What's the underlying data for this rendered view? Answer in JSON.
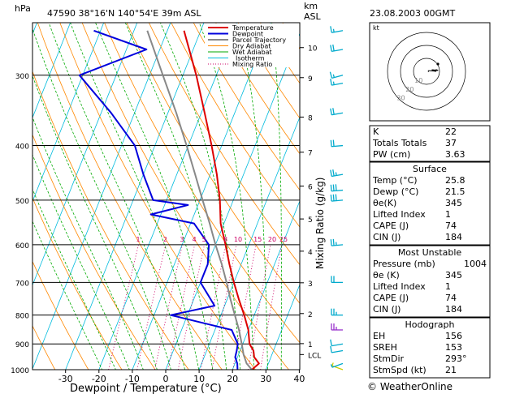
{
  "header": {
    "hpa_label": "hPa",
    "station_info": "47590  38°16'N  140°54'E   39m  ASL",
    "km_label": "km",
    "asl_label": "ASL",
    "datetime": "23.08.2003  00GMT"
  },
  "footer": {
    "credit": "© WeatherOnline"
  },
  "colors": {
    "temperature": "#dd0000",
    "dewpoint": "#0000dd",
    "parcel": "#888888",
    "dry_adiabat": "#ff8800",
    "wet_adiabat": "#00aa00",
    "isotherm": "#00bbdd",
    "mixing_ratio": "#cc0066",
    "wind_barb": "#00aacc",
    "hodograph": "#000000"
  },
  "chart_data": {
    "type": "line",
    "xlabel": "Dewpoint / Temperature (°C)",
    "ylabel_right": "Mixing Ratio (g/kg)",
    "xlim": [
      -40,
      40
    ],
    "ylim": [
      1000,
      250
    ],
    "y_scale": "log",
    "x_ticks": [
      -30,
      -20,
      -10,
      0,
      10,
      20,
      30,
      40
    ],
    "pressure_ticks": [
      300,
      400,
      500,
      600,
      700,
      800,
      900,
      1000
    ],
    "height_ticks": [
      {
        "km": "10",
        "p": 268
      },
      {
        "km": "9",
        "p": 303
      },
      {
        "km": "8",
        "p": 356
      },
      {
        "km": "7",
        "p": 411
      },
      {
        "km": "6",
        "p": 472
      },
      {
        "km": "5",
        "p": 540
      },
      {
        "km": "4",
        "p": 616
      },
      {
        "km": "3",
        "p": 701
      },
      {
        "km": "2",
        "p": 795
      },
      {
        "km": "1",
        "p": 899
      },
      {
        "km": "LCL",
        "p": 940
      }
    ],
    "mixing_ratio_labels": [
      "1",
      "2",
      "3",
      "4",
      "5",
      "8",
      "10",
      "15",
      "20",
      "25"
    ],
    "legend": [
      "Temperature",
      "Dewpoint",
      "Parcel Trajectory",
      "Dry Adiabat",
      "Wet Adiabat",
      "Isotherm",
      "Mixing Ratio"
    ],
    "legend_position": "top-right",
    "grid": true,
    "skew": true,
    "series": [
      {
        "name": "Temperature",
        "points": [
          [
            1000,
            25.8
          ],
          [
            975,
            27.2
          ],
          [
            950,
            25
          ],
          [
            925,
            24
          ],
          [
            900,
            22
          ],
          [
            850,
            20
          ],
          [
            800,
            17
          ],
          [
            750,
            13.5
          ],
          [
            700,
            10
          ],
          [
            650,
            6.5
          ],
          [
            600,
            3
          ],
          [
            550,
            -1
          ],
          [
            500,
            -4
          ],
          [
            450,
            -8
          ],
          [
            400,
            -13
          ],
          [
            350,
            -19
          ],
          [
            300,
            -26
          ],
          [
            250,
            -35
          ]
        ]
      },
      {
        "name": "Dewpoint",
        "points": [
          [
            1000,
            21.5
          ],
          [
            975,
            20.7
          ],
          [
            950,
            19.3
          ],
          [
            925,
            19
          ],
          [
            900,
            18.5
          ],
          [
            850,
            15
          ],
          [
            800,
            -5
          ],
          [
            770,
            7
          ],
          [
            700,
            0
          ],
          [
            650,
            0
          ],
          [
            600,
            -2
          ],
          [
            550,
            -9
          ],
          [
            530,
            -23
          ],
          [
            510,
            -13
          ],
          [
            500,
            -24
          ],
          [
            450,
            -30
          ],
          [
            400,
            -36
          ],
          [
            350,
            -47
          ],
          [
            300,
            -61
          ],
          [
            270,
            -44
          ],
          [
            250,
            -62
          ]
        ]
      },
      {
        "name": "Parcel Trajectory",
        "points": [
          [
            1000,
            25.8
          ],
          [
            975,
            23.5
          ],
          [
            940,
            21.5
          ],
          [
            900,
            19.7
          ],
          [
            850,
            17.2
          ],
          [
            800,
            14.2
          ],
          [
            750,
            11
          ],
          [
            700,
            7.8
          ],
          [
            650,
            4.2
          ],
          [
            600,
            0
          ],
          [
            550,
            -4.3
          ],
          [
            500,
            -9.2
          ],
          [
            450,
            -14.5
          ],
          [
            400,
            -20.5
          ],
          [
            350,
            -27.5
          ],
          [
            300,
            -36
          ],
          [
            250,
            -46
          ]
        ]
      }
    ],
    "wind_profile": [
      {
        "p": 1000,
        "dir": 290,
        "kt": 5
      },
      {
        "p": 975,
        "dir": 250,
        "kt": 5
      },
      {
        "p": 925,
        "dir": 260,
        "kt": 10
      },
      {
        "p": 900,
        "dir": 260,
        "kt": 10
      },
      {
        "p": 850,
        "dir": 270,
        "kt": 25
      },
      {
        "p": 800,
        "dir": 270,
        "kt": 25
      },
      {
        "p": 700,
        "dir": 270,
        "kt": 20
      },
      {
        "p": 600,
        "dir": 265,
        "kt": 25
      },
      {
        "p": 500,
        "dir": 265,
        "kt": 30
      },
      {
        "p": 480,
        "dir": 265,
        "kt": 30
      },
      {
        "p": 450,
        "dir": 260,
        "kt": 25
      },
      {
        "p": 400,
        "dir": 265,
        "kt": 20
      },
      {
        "p": 350,
        "dir": 260,
        "kt": 20
      },
      {
        "p": 310,
        "dir": 260,
        "kt": 15
      },
      {
        "p": 300,
        "dir": 255,
        "kt": 15
      },
      {
        "p": 270,
        "dir": 260,
        "kt": 20
      },
      {
        "p": 250,
        "dir": 260,
        "kt": 15
      }
    ],
    "hodograph": {
      "title": "kt",
      "ring_labels": [
        "10",
        "20",
        "30"
      ]
    }
  },
  "indices": [
    {
      "label": "K",
      "value": "22"
    },
    {
      "label": "Totals Totals",
      "value": "37"
    },
    {
      "label": "PW (cm)",
      "value": "3.63"
    }
  ],
  "surface": {
    "title": "Surface",
    "rows": [
      {
        "label": "Temp (°C)",
        "value": "25.8"
      },
      {
        "label": "Dewp (°C)",
        "value": "21.5"
      },
      {
        "label": "θe(K)",
        "value": "345"
      },
      {
        "label": "Lifted Index",
        "value": "1"
      },
      {
        "label": "CAPE (J)",
        "value": "74"
      },
      {
        "label": "CIN (J)",
        "value": "184"
      }
    ]
  },
  "most_unstable": {
    "title": "Most Unstable",
    "rows": [
      {
        "label": "Pressure (mb)",
        "value": "1004"
      },
      {
        "label": "θe (K)",
        "value": "345"
      },
      {
        "label": "Lifted Index",
        "value": "1"
      },
      {
        "label": "CAPE (J)",
        "value": "74"
      },
      {
        "label": "CIN (J)",
        "value": "184"
      }
    ]
  },
  "hodograph_table": {
    "title": "Hodograph",
    "rows": [
      {
        "label": "EH",
        "value": "156"
      },
      {
        "label": "SREH",
        "value": "153"
      },
      {
        "label": "StmDir",
        "value": "293°"
      },
      {
        "label": "StmSpd (kt)",
        "value": "21"
      }
    ]
  }
}
